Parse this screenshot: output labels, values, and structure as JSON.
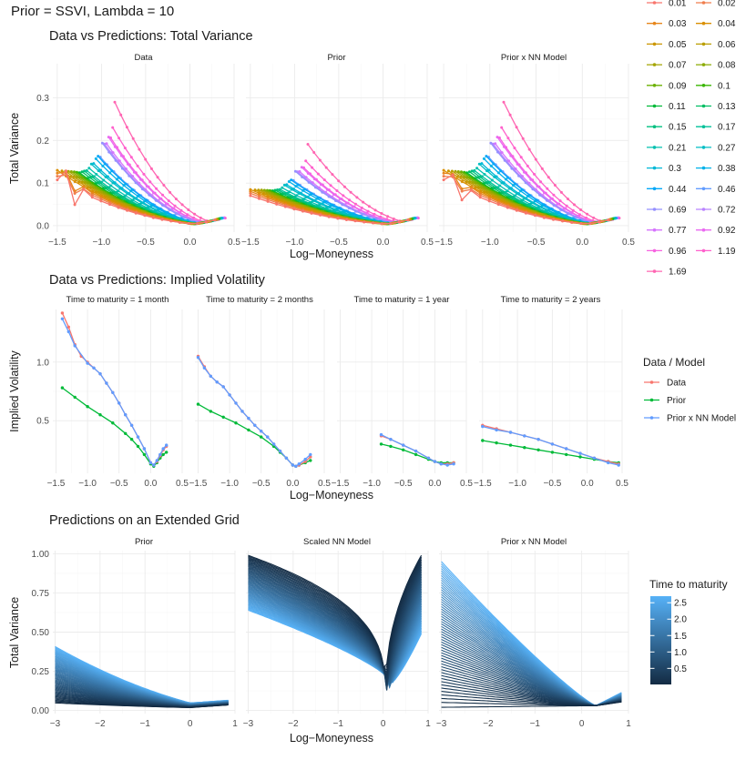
{
  "title": "Prior = SSVI, Lambda = 10",
  "colors": {
    "data": "#F8766D",
    "prior": "#00BA38",
    "nn": "#619CFF",
    "tau_low": "#132B43",
    "tau_high": "#56B1F7"
  },
  "chart_data": [
    {
      "id": "total_variance",
      "type": "line",
      "title": "Data vs Predictions: Total Variance",
      "facets": [
        "Data",
        "Prior",
        "Prior x NN Model"
      ],
      "xlabel": "Log−Moneyness",
      "ylabel": "Total Variance",
      "xlim": [
        -1.55,
        0.5
      ],
      "ylim": [
        -0.015,
        0.38
      ],
      "xticks": [
        -1.5,
        -1.0,
        -0.5,
        0.0,
        0.5
      ],
      "xtick_labels": [
        "−1.5",
        "−1.0",
        "−0.5",
        "0.0",
        "0.5"
      ],
      "yticks": [
        0.0,
        0.1,
        0.2,
        0.3
      ],
      "ytick_labels": [
        "0.0",
        "0.1",
        "0.2",
        "0.3"
      ],
      "legend_title": "",
      "legend_position": "right",
      "maturities": [
        0.01,
        0.02,
        0.03,
        0.04,
        0.05,
        0.06,
        0.07,
        0.08,
        0.09,
        0.1,
        0.11,
        0.13,
        0.15,
        0.17,
        0.21,
        0.27,
        0.3,
        0.38,
        0.44,
        0.46,
        0.69,
        0.72,
        0.77,
        0.92,
        0.96,
        1.19,
        1.69
      ],
      "maturity_labels": [
        "0.01",
        "0.02",
        "0.03",
        "0.04",
        "0.05",
        "0.06",
        "0.07",
        "0.08",
        "0.09",
        "0.1",
        "0.11",
        "0.13",
        "0.15",
        "0.17",
        "0.21",
        "0.27",
        "0.3",
        "0.38",
        "0.44",
        "0.46",
        "0.69",
        "0.72",
        "0.77",
        "0.92",
        "0.96",
        "1.19",
        "1.69"
      ],
      "maturity_colors": [
        "#F8766D",
        "#F07E4D",
        "#E7861B",
        "#DA8F00",
        "#CB9600",
        "#BA9E00",
        "#A4A500",
        "#8BAB00",
        "#6BB100",
        "#39B600",
        "#00BA38",
        "#00BE63",
        "#00C080",
        "#00C199",
        "#00C0AF",
        "#00BDC4",
        "#00B8D7",
        "#00B1E9",
        "#00A7F8",
        "#619CFF",
        "#9590FF",
        "#B983FF",
        "#D675FE",
        "#EA6AF1",
        "#F763E0",
        "#FF61CC",
        "#FF65B2"
      ]
    },
    {
      "id": "implied_vol",
      "type": "line",
      "title": "Data vs Predictions: Implied Volatility",
      "facets": [
        "Time to maturity =  1 month",
        "Time to maturity =  2 months",
        "Time to maturity =  1 year",
        "Time to maturity =  2 years"
      ],
      "xlabel": "Log−Moneyness",
      "ylabel": "Implied Volatility",
      "xlim": [
        -1.55,
        0.5
      ],
      "ylim": [
        0.05,
        1.45
      ],
      "xticks": [
        -1.5,
        -1.0,
        -0.5,
        0.0,
        0.5
      ],
      "xtick_labels": [
        "−1.5",
        "−1.0",
        "−0.5",
        "0.0",
        "0.5"
      ],
      "yticks": [
        0.5,
        1.0
      ],
      "ytick_labels": [
        "0.5",
        "1.0"
      ],
      "legend_title": "Data / Model",
      "legend_position": "right",
      "legend": [
        "Data",
        "Prior",
        "Prior x NN Model"
      ],
      "series_by_facet": [
        {
          "data": [
            [
              -1.4,
              1.42
            ],
            [
              -1.3,
              1.3
            ],
            [
              -1.2,
              1.15
            ],
            [
              -1.1,
              1.05
            ],
            [
              -1.0,
              1.0
            ],
            [
              -0.9,
              0.95
            ],
            [
              -0.8,
              0.9
            ],
            [
              -0.7,
              0.82
            ],
            [
              -0.6,
              0.74
            ],
            [
              -0.5,
              0.65
            ],
            [
              -0.4,
              0.55
            ],
            [
              -0.3,
              0.46
            ],
            [
              -0.2,
              0.36
            ],
            [
              -0.1,
              0.26
            ],
            [
              0.0,
              0.14
            ],
            [
              0.05,
              0.12
            ],
            [
              0.1,
              0.15
            ],
            [
              0.15,
              0.2
            ],
            [
              0.2,
              0.25
            ],
            [
              0.25,
              0.28
            ]
          ],
          "prior": [
            [
              -1.4,
              0.78
            ],
            [
              -1.2,
              0.7
            ],
            [
              -1.0,
              0.62
            ],
            [
              -0.8,
              0.55
            ],
            [
              -0.6,
              0.48
            ],
            [
              -0.4,
              0.39
            ],
            [
              -0.3,
              0.34
            ],
            [
              -0.2,
              0.28
            ],
            [
              -0.1,
              0.21
            ],
            [
              0.0,
              0.13
            ],
            [
              0.05,
              0.11
            ],
            [
              0.1,
              0.14
            ],
            [
              0.15,
              0.18
            ],
            [
              0.2,
              0.21
            ],
            [
              0.25,
              0.23
            ]
          ],
          "nn": [
            [
              -1.4,
              1.37
            ],
            [
              -1.3,
              1.26
            ],
            [
              -1.2,
              1.14
            ],
            [
              -1.0,
              0.99
            ],
            [
              -0.9,
              0.95
            ],
            [
              -0.8,
              0.9
            ],
            [
              -0.7,
              0.82
            ],
            [
              -0.6,
              0.74
            ],
            [
              -0.5,
              0.65
            ],
            [
              -0.4,
              0.55
            ],
            [
              -0.3,
              0.46
            ],
            [
              -0.2,
              0.36
            ],
            [
              -0.1,
              0.26
            ],
            [
              0.0,
              0.14
            ],
            [
              0.05,
              0.12
            ],
            [
              0.1,
              0.16
            ],
            [
              0.15,
              0.21
            ],
            [
              0.2,
              0.26
            ],
            [
              0.25,
              0.29
            ]
          ]
        },
        {
          "data": [
            [
              -1.5,
              1.05
            ],
            [
              -1.4,
              0.96
            ],
            [
              -1.3,
              0.88
            ],
            [
              -1.2,
              0.83
            ],
            [
              -1.1,
              0.79
            ],
            [
              -1.0,
              0.72
            ],
            [
              -0.9,
              0.65
            ],
            [
              -0.8,
              0.58
            ],
            [
              -0.7,
              0.52
            ],
            [
              -0.6,
              0.46
            ],
            [
              -0.5,
              0.41
            ],
            [
              -0.4,
              0.36
            ],
            [
              -0.3,
              0.3
            ],
            [
              -0.2,
              0.24
            ],
            [
              -0.1,
              0.18
            ],
            [
              0.0,
              0.12
            ],
            [
              0.05,
              0.11
            ],
            [
              0.1,
              0.12
            ],
            [
              0.2,
              0.15
            ],
            [
              0.28,
              0.19
            ]
          ],
          "prior": [
            [
              -1.5,
              0.64
            ],
            [
              -1.3,
              0.58
            ],
            [
              -1.1,
              0.53
            ],
            [
              -0.9,
              0.48
            ],
            [
              -0.7,
              0.42
            ],
            [
              -0.5,
              0.36
            ],
            [
              -0.3,
              0.28
            ],
            [
              -0.2,
              0.23
            ],
            [
              -0.1,
              0.18
            ],
            [
              0.0,
              0.12
            ],
            [
              0.05,
              0.11
            ],
            [
              0.1,
              0.12
            ],
            [
              0.2,
              0.14
            ],
            [
              0.28,
              0.16
            ]
          ],
          "nn": [
            [
              -1.5,
              1.04
            ],
            [
              -1.4,
              0.95
            ],
            [
              -1.3,
              0.88
            ],
            [
              -1.2,
              0.83
            ],
            [
              -1.1,
              0.79
            ],
            [
              -1.0,
              0.72
            ],
            [
              -0.9,
              0.65
            ],
            [
              -0.8,
              0.58
            ],
            [
              -0.7,
              0.52
            ],
            [
              -0.6,
              0.46
            ],
            [
              -0.5,
              0.41
            ],
            [
              -0.4,
              0.36
            ],
            [
              -0.3,
              0.3
            ],
            [
              -0.2,
              0.24
            ],
            [
              -0.1,
              0.18
            ],
            [
              0.0,
              0.12
            ],
            [
              0.05,
              0.11
            ],
            [
              0.1,
              0.13
            ],
            [
              0.2,
              0.17
            ],
            [
              0.28,
              0.21
            ]
          ]
        },
        {
          "data": [
            [
              -0.85,
              0.37
            ],
            [
              -0.7,
              0.34
            ],
            [
              -0.5,
              0.29
            ],
            [
              -0.3,
              0.24
            ],
            [
              -0.1,
              0.18
            ],
            [
              0.0,
              0.15
            ],
            [
              0.1,
              0.13
            ],
            [
              0.2,
              0.13
            ],
            [
              0.3,
              0.14
            ]
          ],
          "prior": [
            [
              -0.85,
              0.3
            ],
            [
              -0.7,
              0.28
            ],
            [
              -0.5,
              0.25
            ],
            [
              -0.3,
              0.21
            ],
            [
              -0.1,
              0.17
            ],
            [
              0.0,
              0.15
            ],
            [
              0.1,
              0.14
            ],
            [
              0.2,
              0.14
            ],
            [
              0.3,
              0.14
            ]
          ],
          "nn": [
            [
              -0.85,
              0.38
            ],
            [
              -0.7,
              0.34
            ],
            [
              -0.5,
              0.29
            ],
            [
              -0.3,
              0.24
            ],
            [
              -0.1,
              0.18
            ],
            [
              0.0,
              0.15
            ],
            [
              0.1,
              0.13
            ],
            [
              0.2,
              0.12
            ],
            [
              0.3,
              0.13
            ]
          ]
        },
        {
          "data": [
            [
              -1.5,
              0.46
            ],
            [
              -1.3,
              0.43
            ],
            [
              -1.1,
              0.4
            ],
            [
              -0.9,
              0.37
            ],
            [
              -0.7,
              0.34
            ],
            [
              -0.5,
              0.3
            ],
            [
              -0.3,
              0.26
            ],
            [
              -0.1,
              0.22
            ],
            [
              0.1,
              0.18
            ],
            [
              0.3,
              0.15
            ],
            [
              0.45,
              0.13
            ]
          ],
          "prior": [
            [
              -1.5,
              0.33
            ],
            [
              -1.3,
              0.31
            ],
            [
              -1.1,
              0.29
            ],
            [
              -0.9,
              0.27
            ],
            [
              -0.7,
              0.25
            ],
            [
              -0.5,
              0.23
            ],
            [
              -0.3,
              0.21
            ],
            [
              -0.1,
              0.19
            ],
            [
              0.1,
              0.17
            ],
            [
              0.3,
              0.15
            ],
            [
              0.45,
              0.14
            ]
          ],
          "nn": [
            [
              -1.5,
              0.45
            ],
            [
              -1.3,
              0.42
            ],
            [
              -1.1,
              0.4
            ],
            [
              -0.9,
              0.37
            ],
            [
              -0.7,
              0.34
            ],
            [
              -0.5,
              0.3
            ],
            [
              -0.3,
              0.26
            ],
            [
              -0.1,
              0.22
            ],
            [
              0.1,
              0.18
            ],
            [
              0.3,
              0.14
            ],
            [
              0.45,
              0.12
            ]
          ]
        }
      ]
    },
    {
      "id": "extended_grid",
      "type": "line",
      "title": "Predictions on an Extended Grid",
      "facets": [
        "Prior",
        "Scaled NN Model",
        "Prior x NN Model"
      ],
      "xlabel": "Log−Moneyness",
      "ylabel": "Total Variance",
      "xlim": [
        -3.05,
        1.0
      ],
      "ylim": [
        -0.02,
        1.02
      ],
      "xticks": [
        -3,
        -2,
        -1,
        0,
        1
      ],
      "xtick_labels": [
        "−3",
        "−2",
        "−1",
        "0",
        "1"
      ],
      "yticks": [
        0.0,
        0.25,
        0.5,
        0.75,
        1.0
      ],
      "ytick_labels": [
        "0.00",
        "0.25",
        "0.50",
        "0.75",
        "1.00"
      ],
      "legend_title": "Time to maturity",
      "legend_position": "right",
      "colorbar_range": [
        0.01,
        2.7
      ],
      "colorbar_ticks": [
        0.5,
        1.0,
        1.5,
        2.0,
        2.5
      ],
      "colorbar_labels": [
        "0.5",
        "1.0",
        "1.5",
        "2.0",
        "2.5"
      ],
      "x_range": [
        -3,
        0.85
      ],
      "tau_range": [
        0.01,
        2.7
      ],
      "n_curves": 55
    }
  ]
}
